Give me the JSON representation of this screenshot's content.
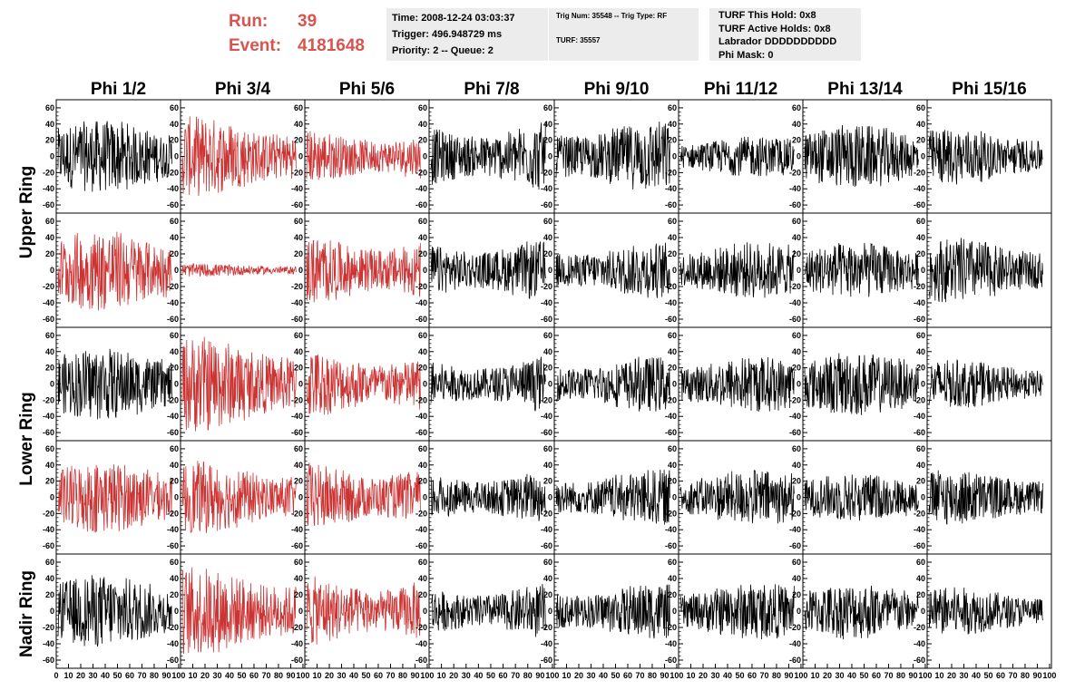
{
  "run": {
    "run_label": "Run:",
    "run_value": "39",
    "event_label": "Event:",
    "event_value": "4181648"
  },
  "info_time": {
    "time": "Time: 2008-12-24 03:03:37",
    "trigger": "Trigger: 496.948729 ms",
    "priority": "Priority: 2 -- Queue: 2"
  },
  "info_trig": {
    "trig": "Trig Num: 35548 -- Trig Type: RF",
    "turf": "TURF: 35557"
  },
  "info_turf": {
    "hold": "TURF This Hold: 0x8",
    "active": "TURF Active Holds: 0x8",
    "labrador": "Labrador DDDDDDDDDD",
    "phimask": "Phi Mask: 0"
  },
  "columns": [
    "Phi 1/2",
    "Phi 3/4",
    "Phi 5/6",
    "Phi 7/8",
    "Phi 9/10",
    "Phi 11/12",
    "Phi 13/14",
    "Phi 15/16"
  ],
  "rows": [
    "Upper Ring",
    "Lower Ring",
    "Nadir Ring"
  ],
  "y_ticks": [
    "60",
    "40",
    "20",
    "0",
    "-20",
    "-40",
    "-60"
  ],
  "x_ticks": [
    "0",
    "10",
    "20",
    "30",
    "40",
    "50",
    "60",
    "70",
    "80",
    "90",
    "100"
  ],
  "colors": {
    "normal_trace": "#000000",
    "triggered_trace": "#cc3333",
    "run_text": "#d9534f",
    "info_bg": "#ececec"
  },
  "chart_data": {
    "type": "line",
    "ylim": [
      -70,
      70
    ],
    "xlim": [
      0,
      100
    ],
    "panels_highlighted": [
      [
        false,
        true,
        true,
        false,
        false,
        false,
        false,
        false
      ],
      [
        true,
        true,
        true,
        false,
        false,
        false,
        false,
        false
      ],
      [
        false,
        true,
        true,
        false,
        false,
        false,
        false,
        false
      ],
      [
        true,
        true,
        true,
        false,
        false,
        false,
        false,
        false
      ],
      [
        false,
        true,
        true,
        false,
        false,
        false,
        false,
        false
      ]
    ],
    "panel_amplitude": [
      [
        45,
        50,
        35,
        45,
        45,
        25,
        40,
        35
      ],
      [
        50,
        8,
        45,
        40,
        35,
        35,
        35,
        40
      ],
      [
        45,
        60,
        45,
        35,
        35,
        35,
        40,
        30
      ],
      [
        45,
        45,
        45,
        35,
        35,
        35,
        30,
        35
      ],
      [
        45,
        55,
        45,
        35,
        35,
        35,
        35,
        30
      ]
    ]
  }
}
